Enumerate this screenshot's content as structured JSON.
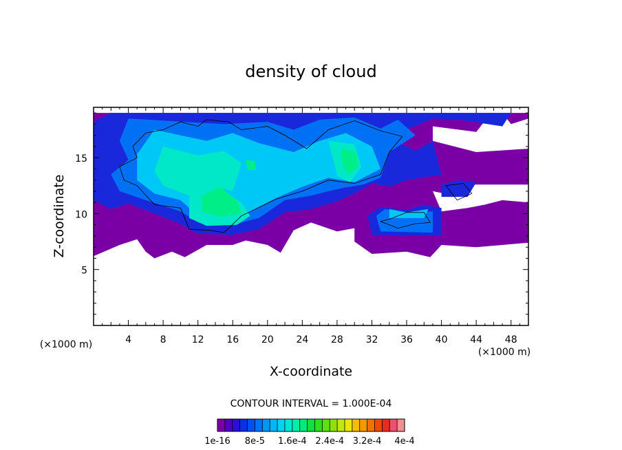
{
  "chart_data": {
    "type": "heatmap",
    "title": "density of cloud",
    "xlabel": "X-coordinate",
    "ylabel": "Z-coordinate",
    "x_unit_note": "(×1000 m)",
    "y_unit_note": "(×1000 m)",
    "xlim": [
      0,
      50
    ],
    "ylim": [
      0,
      19.5
    ],
    "x_ticks": [
      4,
      8,
      12,
      16,
      20,
      24,
      28,
      32,
      36,
      40,
      44,
      48
    ],
    "y_ticks": [
      5,
      10,
      15
    ],
    "contour_interval_text": "CONTOUR INTERVAL = 1.000E-04",
    "colorbar_labels": [
      "1e-16",
      "8e-5",
      "1.6e-4",
      "2.4e-4",
      "3.2e-4",
      "4e-4"
    ],
    "colorbar_colors": [
      "#7a00a6",
      "#5200c4",
      "#2a10d6",
      "#0a30e6",
      "#0050f0",
      "#0072f5",
      "#0096f7",
      "#00b6f7",
      "#00d2f2",
      "#00e8d4",
      "#00eeaa",
      "#00ea7a",
      "#10e040",
      "#30e020",
      "#60e010",
      "#90e010",
      "#c0e810",
      "#e8e800",
      "#f0c000",
      "#f49800",
      "#f07000",
      "#ec4a00",
      "#e82a20",
      "#ee5070",
      "#f09090"
    ],
    "grid": false,
    "regions": [
      {
        "level": 1,
        "points": [
          [
            0,
            19
          ],
          [
            50,
            19
          ],
          [
            50,
            18.5
          ],
          [
            48,
            18
          ],
          [
            47,
            19
          ],
          [
            45,
            18.3
          ],
          [
            44,
            17.3
          ],
          [
            39,
            17.8
          ],
          [
            39,
            16.5
          ],
          [
            44,
            15.5
          ],
          [
            50,
            15.8
          ],
          [
            50,
            12.6
          ],
          [
            43,
            12.6
          ],
          [
            41,
            11.7
          ],
          [
            39,
            12
          ],
          [
            40,
            10.2
          ],
          [
            43,
            10.5
          ],
          [
            45,
            10.8
          ],
          [
            47,
            11.2
          ],
          [
            50,
            11
          ],
          [
            50,
            7.4
          ],
          [
            44,
            7
          ],
          [
            40,
            7.2
          ],
          [
            38.7,
            6.1
          ],
          [
            36,
            6.6
          ],
          [
            32,
            6.4
          ],
          [
            30,
            7.5
          ],
          [
            30,
            8.7
          ],
          [
            28,
            8.4
          ],
          [
            25,
            9.2
          ],
          [
            23,
            8.5
          ],
          [
            21.5,
            6.5
          ],
          [
            20,
            7.2
          ],
          [
            17.5,
            7.6
          ],
          [
            16,
            7.2
          ],
          [
            13,
            7.2
          ],
          [
            10.5,
            6.1
          ],
          [
            9,
            6.6
          ],
          [
            7,
            6
          ],
          [
            6,
            6.6
          ],
          [
            5,
            7.7
          ],
          [
            3,
            7.2
          ],
          [
            0,
            6.2
          ]
        ]
      },
      {
        "level": 2,
        "points": [
          [
            2,
            19
          ],
          [
            48,
            19
          ],
          [
            47,
            17.8
          ],
          [
            42,
            18.4
          ],
          [
            39,
            18.5
          ],
          [
            36,
            17.5
          ],
          [
            35,
            16.4
          ],
          [
            37,
            15.6
          ],
          [
            39,
            16.5
          ],
          [
            40,
            13.5
          ],
          [
            36,
            13
          ],
          [
            34,
            12.4
          ],
          [
            32,
            12.7
          ],
          [
            30,
            11.8
          ],
          [
            28,
            11.1
          ],
          [
            25,
            10.4
          ],
          [
            22,
            10.1
          ],
          [
            19,
            8.6
          ],
          [
            16,
            8.1
          ],
          [
            12,
            8.2
          ],
          [
            10,
            9.1
          ],
          [
            7,
            10
          ],
          [
            4,
            10.9
          ],
          [
            2,
            10.4
          ],
          [
            0,
            11.2
          ],
          [
            0,
            18.2
          ]
        ]
      },
      {
        "level": 2,
        "points": [
          [
            32,
            8.1
          ],
          [
            40,
            8
          ],
          [
            40,
            10.5
          ],
          [
            38,
            10.8
          ],
          [
            36,
            10.3
          ],
          [
            33,
            10.6
          ],
          [
            31.5,
            9.8
          ]
        ]
      },
      {
        "level": 2,
        "points": [
          [
            40,
            11.5
          ],
          [
            43,
            11.5
          ],
          [
            44,
            12.8
          ],
          [
            42,
            13
          ],
          [
            40,
            12.6
          ]
        ]
      },
      {
        "level": 3,
        "points": [
          [
            4,
            18.5
          ],
          [
            15,
            18
          ],
          [
            20,
            18.2
          ],
          [
            23,
            17.5
          ],
          [
            26,
            18.4
          ],
          [
            30,
            18.6
          ],
          [
            33,
            17.6
          ],
          [
            35,
            18.4
          ],
          [
            37,
            17
          ],
          [
            34,
            15.5
          ],
          [
            33,
            13.2
          ],
          [
            31,
            12.6
          ],
          [
            28,
            12.2
          ],
          [
            25,
            11.6
          ],
          [
            22,
            11.2
          ],
          [
            19,
            9.6
          ],
          [
            16,
            9
          ],
          [
            12,
            9.2
          ],
          [
            10,
            10.2
          ],
          [
            6,
            11.2
          ],
          [
            3,
            12
          ],
          [
            2,
            13.5
          ],
          [
            4,
            14.8
          ],
          [
            3,
            16.5
          ]
        ]
      },
      {
        "level": 3,
        "points": [
          [
            33,
            8.4
          ],
          [
            39,
            8.3
          ],
          [
            39,
            10.2
          ],
          [
            36,
            10.1
          ],
          [
            33.5,
            10.4
          ],
          [
            32.5,
            9.8
          ]
        ]
      },
      {
        "level": 4,
        "points": [
          [
            7,
            17.5
          ],
          [
            13,
            16.5
          ],
          [
            16,
            17.2
          ],
          [
            19,
            16.3
          ],
          [
            23,
            15.5
          ],
          [
            26,
            16.5
          ],
          [
            29,
            17.2
          ],
          [
            32,
            16
          ],
          [
            33,
            14
          ],
          [
            30,
            12.8
          ],
          [
            27,
            13.2
          ],
          [
            24,
            12.4
          ],
          [
            21,
            11.4
          ],
          [
            18,
            10.2
          ],
          [
            15,
            9.5
          ],
          [
            12,
            9.8
          ],
          [
            10,
            11.2
          ],
          [
            7,
            11.8
          ],
          [
            5,
            13
          ],
          [
            5,
            15.3
          ]
        ]
      },
      {
        "level": 4,
        "points": [
          [
            34,
            9.6
          ],
          [
            38,
            9.6
          ],
          [
            38.5,
            10.4
          ],
          [
            36,
            10.1
          ],
          [
            34,
            10.4
          ]
        ]
      },
      {
        "level": 5,
        "points": [
          [
            8,
            16
          ],
          [
            12,
            15.2
          ],
          [
            15,
            15.6
          ],
          [
            17,
            14.5
          ],
          [
            16,
            12
          ],
          [
            13.5,
            12.5
          ],
          [
            11,
            11.6
          ],
          [
            8,
            12.5
          ],
          [
            7,
            13.8
          ]
        ]
      },
      {
        "level": 5,
        "points": [
          [
            27,
            16.5
          ],
          [
            30,
            16.2
          ],
          [
            30.8,
            14.2
          ],
          [
            29.5,
            12.8
          ],
          [
            28,
            13.4
          ],
          [
            27.5,
            15
          ]
        ]
      },
      {
        "level": 5,
        "points": [
          [
            11,
            12
          ],
          [
            14,
            12.8
          ],
          [
            15,
            12
          ],
          [
            17,
            11
          ],
          [
            18,
            9.8
          ],
          [
            16.5,
            9
          ],
          [
            13,
            8.9
          ],
          [
            11,
            9.6
          ]
        ]
      },
      {
        "level": 6,
        "points": [
          [
            12.5,
            11.6
          ],
          [
            14.5,
            12.4
          ],
          [
            16.5,
            11.2
          ],
          [
            17,
            10
          ],
          [
            14.5,
            9.7
          ],
          [
            12.5,
            10.2
          ]
        ]
      },
      {
        "level": 6,
        "points": [
          [
            28.5,
            15.8
          ],
          [
            30.2,
            15.5
          ],
          [
            30.4,
            14.2
          ],
          [
            29.3,
            13.5
          ],
          [
            28.6,
            14.4
          ]
        ]
      },
      {
        "level": 6,
        "points": [
          [
            17.5,
            14.8
          ],
          [
            18.5,
            14.7
          ],
          [
            18.7,
            13.9
          ],
          [
            17.7,
            13.9
          ]
        ]
      }
    ],
    "contours": [
      [
        [
          6,
          17.2
        ],
        [
          8,
          17.5
        ],
        [
          10,
          18.2
        ],
        [
          12,
          17.8
        ],
        [
          13,
          18.4
        ],
        [
          15.5,
          18.2
        ],
        [
          17,
          17.5
        ],
        [
          20,
          17.8
        ],
        [
          22,
          17
        ],
        [
          24.5,
          15.8
        ],
        [
          27,
          17.5
        ],
        [
          30,
          18.3
        ],
        [
          33,
          17.4
        ],
        [
          35.5,
          16.9
        ],
        [
          34,
          15.5
        ],
        [
          33,
          13.5
        ],
        [
          30,
          12.7
        ],
        [
          27,
          13
        ],
        [
          24,
          12
        ],
        [
          21,
          11.3
        ],
        [
          17,
          9.8
        ],
        [
          15,
          8.3
        ],
        [
          13.5,
          8.5
        ],
        [
          11,
          8.6
        ],
        [
          10,
          10.5
        ],
        [
          7,
          10.8
        ],
        [
          5,
          12.5
        ],
        [
          3.5,
          13
        ],
        [
          3,
          14.2
        ],
        [
          5,
          15
        ],
        [
          4.5,
          16
        ]
      ],
      [
        [
          34,
          9.5
        ],
        [
          36,
          10.1
        ],
        [
          38,
          10.1
        ],
        [
          38.7,
          9.2
        ],
        [
          37,
          9.1
        ],
        [
          35,
          8.7
        ],
        [
          33,
          9.3
        ]
      ],
      [
        [
          40.5,
          12.5
        ],
        [
          42.5,
          12.7
        ],
        [
          43.5,
          11.8
        ],
        [
          41.8,
          11.2
        ]
      ]
    ]
  }
}
